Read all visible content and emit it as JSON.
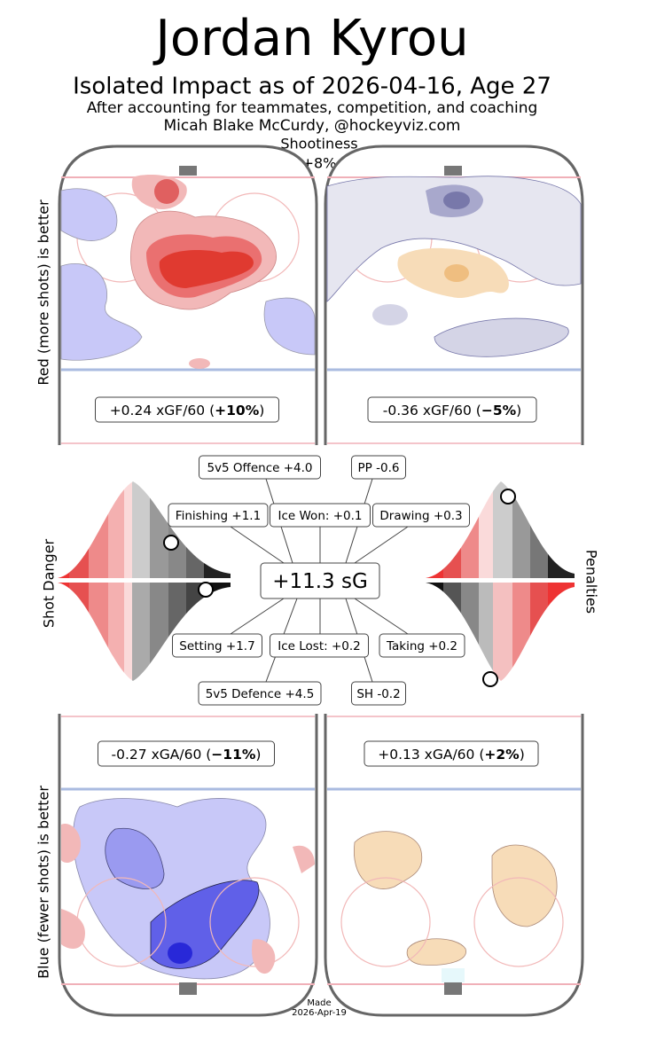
{
  "header": {
    "title": "Jordan Kyrou",
    "subtitle": "Isolated Impact as of 2026-04-16, Age 27",
    "context": "After accounting for teammates, competition, and coaching",
    "author": "Micah Blake McCurdy, @hockeyviz.com"
  },
  "shootiness": {
    "label": "Shootiness",
    "value": "+8%"
  },
  "side_labels": {
    "offence": "Red (more shots) is better",
    "defence": "Blue (fewer shots) is better",
    "shot_danger": "Shot Danger",
    "penalties": "Penalties"
  },
  "panels": [
    {
      "prefix": "+0.24 xGF/60 (",
      "pct": "+10%",
      "suffix": ")"
    },
    {
      "prefix": "-0.36 xGF/60 (",
      "pct": "−5%",
      "suffix": ")"
    },
    {
      "prefix": "-0.27 xGA/60 (",
      "pct": "−11%",
      "suffix": ")"
    },
    {
      "prefix": "+0.13 xGA/60 (",
      "pct": "+2%",
      "suffix": ")"
    }
  ],
  "components": [
    "5v5 Offence +4.0",
    "PP -0.6",
    "Finishing +1.1",
    "Ice Won: +0.1",
    "Drawing +0.3",
    "Setting +1.7",
    "Ice Lost: +0.2",
    "Taking +0.2",
    "5v5 Defence +4.5",
    "SH -0.2"
  ],
  "total": "+11.3 sG",
  "footer": {
    "made": "Made",
    "date": "2026-Apr-19"
  }
}
